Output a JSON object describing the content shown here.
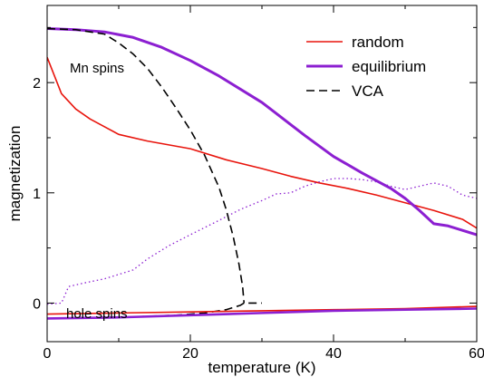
{
  "chart_data": {
    "type": "line",
    "xlabel": "temperature (K)",
    "ylabel": "magnetization",
    "xlim": [
      0,
      60
    ],
    "ylim": [
      -0.35,
      2.7
    ],
    "xticks": [
      "0",
      "20",
      "40",
      "60"
    ],
    "yticks": [
      "0",
      "1",
      "2"
    ],
    "grid": false,
    "legend_position": "top-right",
    "legend": [
      {
        "label": "random",
        "series": "random",
        "color": "#e8140c",
        "dash": "solid"
      },
      {
        "label": "equilibrium",
        "series": "equilibrium",
        "color": "#8c1fd1",
        "dash": "solid"
      },
      {
        "label": "VCA",
        "series": "vca",
        "color": "#000000",
        "dash": "dashed"
      }
    ],
    "annotations": [
      "Mn spins",
      "hole spins"
    ],
    "series": [
      {
        "id": "random",
        "name": "random",
        "color": "#e8140c",
        "dash": "solid",
        "width": 1.6,
        "points": [
          [
            0,
            2.23
          ],
          [
            2,
            1.9
          ],
          [
            4,
            1.76
          ],
          [
            6,
            1.67
          ],
          [
            8,
            1.6
          ],
          [
            10,
            1.53
          ],
          [
            14,
            1.47
          ],
          [
            20,
            1.4
          ],
          [
            25,
            1.3
          ],
          [
            30,
            1.22
          ],
          [
            34,
            1.15
          ],
          [
            38,
            1.09
          ],
          [
            42,
            1.04
          ],
          [
            46,
            0.98
          ],
          [
            50,
            0.91
          ],
          [
            54,
            0.84
          ],
          [
            58,
            0.76
          ],
          [
            60,
            0.68
          ]
        ]
      },
      {
        "id": "equilibrium",
        "name": "equilibrium",
        "color": "#8c1fd1",
        "dash": "solid",
        "width": 3,
        "points": [
          [
            0,
            2.49
          ],
          [
            4,
            2.48
          ],
          [
            8,
            2.46
          ],
          [
            12,
            2.41
          ],
          [
            16,
            2.32
          ],
          [
            20,
            2.2
          ],
          [
            24,
            2.06
          ],
          [
            28,
            1.9
          ],
          [
            30,
            1.82
          ],
          [
            32,
            1.72
          ],
          [
            36,
            1.52
          ],
          [
            40,
            1.33
          ],
          [
            44,
            1.18
          ],
          [
            48,
            1.04
          ],
          [
            50,
            0.95
          ],
          [
            52,
            0.84
          ],
          [
            54,
            0.72
          ],
          [
            56,
            0.7
          ],
          [
            58,
            0.66
          ],
          [
            60,
            0.62
          ]
        ]
      },
      {
        "id": "hole_dotted",
        "color": "#8c1fd1",
        "dash": "dotted",
        "width": 1.3,
        "points": [
          [
            0,
            -0.01
          ],
          [
            2,
            0.0
          ],
          [
            3,
            0.15
          ],
          [
            5,
            0.18
          ],
          [
            8,
            0.22
          ],
          [
            10,
            0.26
          ],
          [
            12,
            0.3
          ],
          [
            14,
            0.4
          ],
          [
            17,
            0.52
          ],
          [
            20,
            0.62
          ],
          [
            24,
            0.75
          ],
          [
            27,
            0.85
          ],
          [
            30,
            0.93
          ],
          [
            32,
            0.99
          ],
          [
            34,
            1.0
          ],
          [
            36,
            1.06
          ],
          [
            38,
            1.1
          ],
          [
            40,
            1.13
          ],
          [
            42,
            1.13
          ],
          [
            44,
            1.12
          ],
          [
            46,
            1.1
          ],
          [
            48,
            1.06
          ],
          [
            50,
            1.03
          ],
          [
            52,
            1.06
          ],
          [
            54,
            1.09
          ],
          [
            56,
            1.06
          ],
          [
            58,
            0.98
          ],
          [
            60,
            0.95
          ]
        ]
      },
      {
        "id": "vca",
        "name": "VCA",
        "color": "#000000",
        "dash": "dashed",
        "width": 1.6,
        "points": [
          [
            0,
            2.49
          ],
          [
            4,
            2.48
          ],
          [
            8,
            2.44
          ],
          [
            10,
            2.36
          ],
          [
            12,
            2.26
          ],
          [
            14,
            2.13
          ],
          [
            16,
            1.96
          ],
          [
            18,
            1.77
          ],
          [
            20,
            1.57
          ],
          [
            22,
            1.34
          ],
          [
            24,
            1.05
          ],
          [
            25,
            0.85
          ],
          [
            26,
            0.6
          ],
          [
            26.8,
            0.35
          ],
          [
            27.3,
            0.15
          ],
          [
            27.5,
            0.0
          ]
        ]
      },
      {
        "id": "vca_hole",
        "color": "#000000",
        "dash": "dashed",
        "width": 1.6,
        "points": [
          [
            0,
            -0.14
          ],
          [
            6,
            -0.13
          ],
          [
            10,
            -0.13
          ],
          [
            14,
            -0.12
          ],
          [
            18,
            -0.11
          ],
          [
            22,
            -0.09
          ],
          [
            25,
            -0.06
          ],
          [
            27,
            -0.02
          ],
          [
            27.5,
            0.0
          ],
          [
            30,
            0.0
          ]
        ]
      },
      {
        "id": "random_hole",
        "color": "#e8140c",
        "dash": "solid",
        "width": 1.6,
        "points": [
          [
            0,
            -0.1
          ],
          [
            10,
            -0.09
          ],
          [
            20,
            -0.08
          ],
          [
            30,
            -0.07
          ],
          [
            40,
            -0.06
          ],
          [
            50,
            -0.05
          ],
          [
            60,
            -0.03
          ]
        ]
      },
      {
        "id": "equilibrium_hole",
        "color": "#8c1fd1",
        "dash": "solid",
        "width": 2.6,
        "points": [
          [
            0,
            -0.14
          ],
          [
            10,
            -0.13
          ],
          [
            20,
            -0.11
          ],
          [
            30,
            -0.09
          ],
          [
            40,
            -0.07
          ],
          [
            50,
            -0.06
          ],
          [
            60,
            -0.05
          ]
        ]
      }
    ]
  }
}
